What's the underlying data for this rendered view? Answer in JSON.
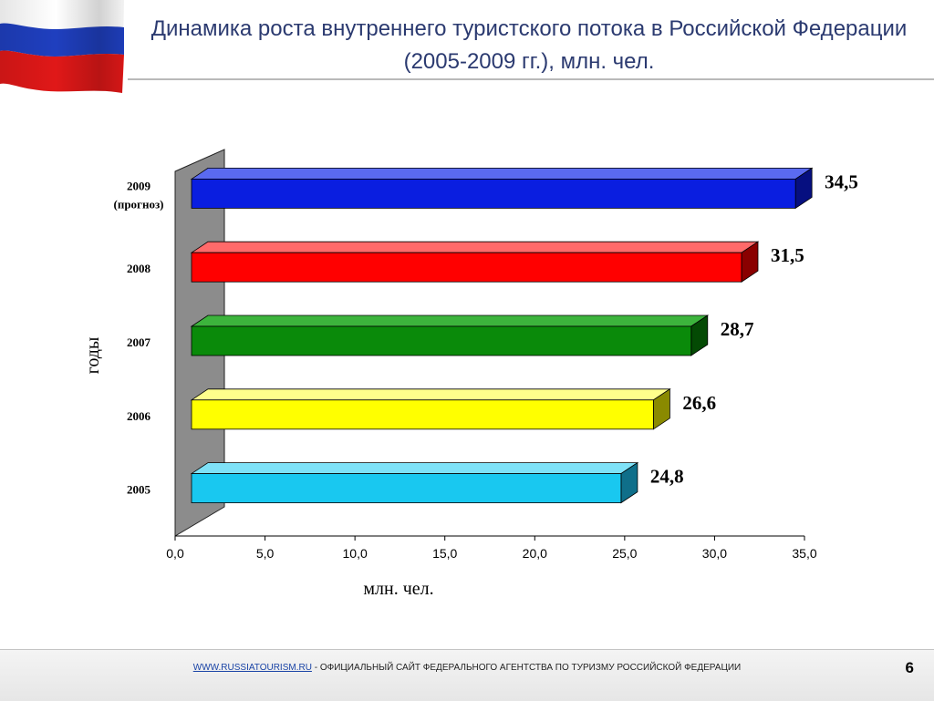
{
  "header": {
    "title_line1": "Динамика роста внутреннего туристского потока в Российской Федерации",
    "title_line2": "(2005-2009 гг.), млн. чел."
  },
  "colors": {
    "title": "#2b3a70",
    "flag_white": "#ffffff",
    "flag_blue": "#1f3fbf",
    "flag_red": "#e01818",
    "wall": "#8c8c8c",
    "link": "#1a44a6"
  },
  "chart_data": {
    "type": "bar",
    "orientation": "horizontal",
    "categories": [
      "2005",
      "2006",
      "2007",
      "2008",
      "2009 (прогноз)"
    ],
    "category_labels": [
      [
        "2005"
      ],
      [
        "2006"
      ],
      [
        "2007"
      ],
      [
        "2008"
      ],
      [
        "2009",
        "(прогноз)"
      ]
    ],
    "values": [
      24.8,
      26.6,
      28.7,
      31.5,
      34.5
    ],
    "data_labels": [
      "24,8",
      "26,6",
      "28,7",
      "31,5",
      "34,5"
    ],
    "bar_colors": [
      "#19c8f0",
      "#ffff00",
      "#0a8a0a",
      "#ff0000",
      "#0a1ee0"
    ],
    "bar_side_colors": [
      "#0f6f8a",
      "#8a8a00",
      "#044a04",
      "#8a0000",
      "#060f80"
    ],
    "bar_top_colors": [
      "#7fe2f8",
      "#ffff8c",
      "#3cb43c",
      "#ff6a6a",
      "#5a6af0"
    ],
    "xlim": [
      0,
      35
    ],
    "xticks": [
      0,
      5,
      10,
      15,
      20,
      25,
      30,
      35
    ],
    "xtick_labels": [
      "0,0",
      "5,0",
      "10,0",
      "15,0",
      "20,0",
      "25,0",
      "30,0",
      "35,0"
    ],
    "xlabel": "млн. чел.",
    "ylabel": "годы",
    "grid": false,
    "style": "3d"
  },
  "footer": {
    "link_text": "WWW.RUSSIATOURISM.RU",
    "text": " - ОФИЦИАЛЬНЫЙ САЙТ ФЕДЕРАЛЬНОГО АГЕНТСТВА ПО ТУРИЗМУ РОССИЙСКОЙ ФЕДЕРАЦИИ",
    "page_number": "6"
  }
}
